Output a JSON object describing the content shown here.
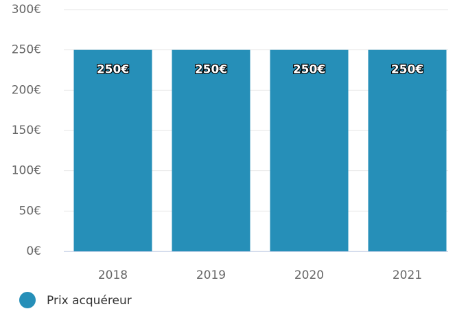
{
  "chart_data": {
    "type": "bar",
    "categories": [
      "2018",
      "2019",
      "2020",
      "2021"
    ],
    "series": [
      {
        "name": "Prix acquéreur",
        "color": "#268fb8",
        "values": [
          250,
          250,
          250,
          250
        ],
        "value_labels": [
          "250€",
          "250€",
          "250€",
          "250€"
        ]
      }
    ],
    "ylim": [
      0,
      300
    ],
    "yticks": [
      {
        "value": 0,
        "label": "0€"
      },
      {
        "value": 50,
        "label": "50€"
      },
      {
        "value": 100,
        "label": "100€"
      },
      {
        "value": 150,
        "label": "150€"
      },
      {
        "value": 200,
        "label": "200€"
      },
      {
        "value": 250,
        "label": "250€"
      },
      {
        "value": 300,
        "label": "300€"
      }
    ],
    "grid": true
  }
}
